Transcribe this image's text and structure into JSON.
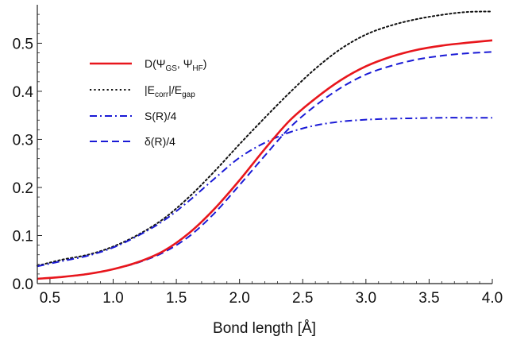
{
  "chart_data": {
    "type": "line",
    "title": "",
    "xlabel": "Bond length [Å]",
    "ylabel": "",
    "xlim": [
      0.4,
      4.0
    ],
    "ylim": [
      0.0,
      0.58
    ],
    "xticks": [
      "0.5",
      "1.0",
      "1.5",
      "2.0",
      "2.5",
      "3.0",
      "3.5",
      "4.0"
    ],
    "yticks": [
      "0.0",
      "0.1",
      "0.2",
      "0.3",
      "0.4",
      "0.5"
    ],
    "grid": false,
    "legend_position": "upper-left",
    "series": [
      {
        "legend": {
          "main": "D(Ψ",
          "sub1": "GS",
          "mid": ", Ψ",
          "sub2": "HF",
          "end": ")"
        },
        "color": "#e8161c",
        "dash": "solid",
        "x": [
          0.4,
          0.6,
          0.8,
          1.0,
          1.2,
          1.4,
          1.6,
          1.8,
          2.0,
          2.2,
          2.4,
          2.6,
          2.8,
          3.0,
          3.2,
          3.4,
          3.6,
          3.8,
          4.0
        ],
        "y": [
          0.01,
          0.014,
          0.02,
          0.03,
          0.045,
          0.068,
          0.105,
          0.155,
          0.215,
          0.28,
          0.34,
          0.385,
          0.423,
          0.452,
          0.472,
          0.486,
          0.495,
          0.501,
          0.506
        ]
      },
      {
        "legend": {
          "main": "|E",
          "sub1": "corr",
          "mid": "|/E",
          "sub2": "gap",
          "end": ""
        },
        "color": "#111111",
        "dash": "dotted",
        "x": [
          0.4,
          0.6,
          0.8,
          1.0,
          1.2,
          1.4,
          1.6,
          1.8,
          2.0,
          2.2,
          2.4,
          2.6,
          2.8,
          3.0,
          3.2,
          3.4,
          3.6,
          3.8,
          4.0
        ],
        "y": [
          0.037,
          0.05,
          0.06,
          0.077,
          0.102,
          0.135,
          0.18,
          0.233,
          0.29,
          0.345,
          0.398,
          0.447,
          0.488,
          0.518,
          0.537,
          0.55,
          0.559,
          0.565,
          0.566
        ]
      },
      {
        "legend": {
          "main": "S(R)/4",
          "sub1": "",
          "mid": "",
          "sub2": "",
          "end": ""
        },
        "color": "#1a1ad6",
        "dash": "dashdot",
        "x": [
          0.4,
          0.6,
          0.8,
          1.0,
          1.2,
          1.4,
          1.6,
          1.8,
          2.0,
          2.2,
          2.4,
          2.6,
          2.8,
          3.0,
          3.2,
          3.4,
          3.6,
          3.8,
          4.0
        ],
        "y": [
          0.036,
          0.047,
          0.058,
          0.075,
          0.1,
          0.131,
          0.172,
          0.218,
          0.262,
          0.293,
          0.315,
          0.329,
          0.337,
          0.341,
          0.343,
          0.344,
          0.345,
          0.345,
          0.345
        ]
      },
      {
        "legend": {
          "main": "δ(R)/4",
          "sub1": "",
          "mid": "",
          "sub2": "",
          "end": ""
        },
        "color": "#1a1ad6",
        "dash": "dashed",
        "x": [
          0.4,
          0.6,
          0.8,
          1.0,
          1.2,
          1.4,
          1.6,
          1.8,
          2.0,
          2.2,
          2.4,
          2.6,
          2.8,
          3.0,
          3.2,
          3.4,
          3.6,
          3.8,
          4.0
        ],
        "y": [
          0.01,
          0.014,
          0.02,
          0.03,
          0.044,
          0.065,
          0.098,
          0.146,
          0.205,
          0.266,
          0.325,
          0.37,
          0.407,
          0.435,
          0.453,
          0.466,
          0.474,
          0.479,
          0.482
        ]
      }
    ]
  }
}
